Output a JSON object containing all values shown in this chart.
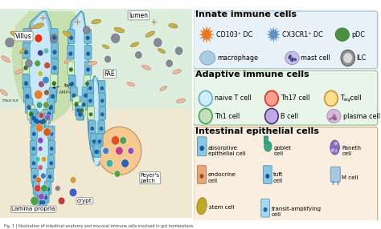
{
  "bg_color": "#ffffff",
  "left_bg": "#f0e8d0",
  "lumen_bg": "#ddeedd",
  "villus_outer": "#8ec8e0",
  "villus_inner": "#c8e8f8",
  "cell_blue": "#78bcd8",
  "cell_edge": "#4090b0",
  "section_titles": [
    "Innate immune cells",
    "Adaptive immune cells",
    "Intestinal epithelial cells"
  ],
  "section_fontsize": 8,
  "innate_box": "#e8f0f8",
  "innate_edge": "#a0b8cc",
  "adaptive_box": "#e8f5e8",
  "adaptive_edge": "#90b890",
  "epithelial_box": "#faeee0",
  "epithelial_edge": "#c8a870",
  "caption": "Fig. 1 | Illustration of intestinal anatomy and mucosal immune cells involved in gut homeostasis."
}
